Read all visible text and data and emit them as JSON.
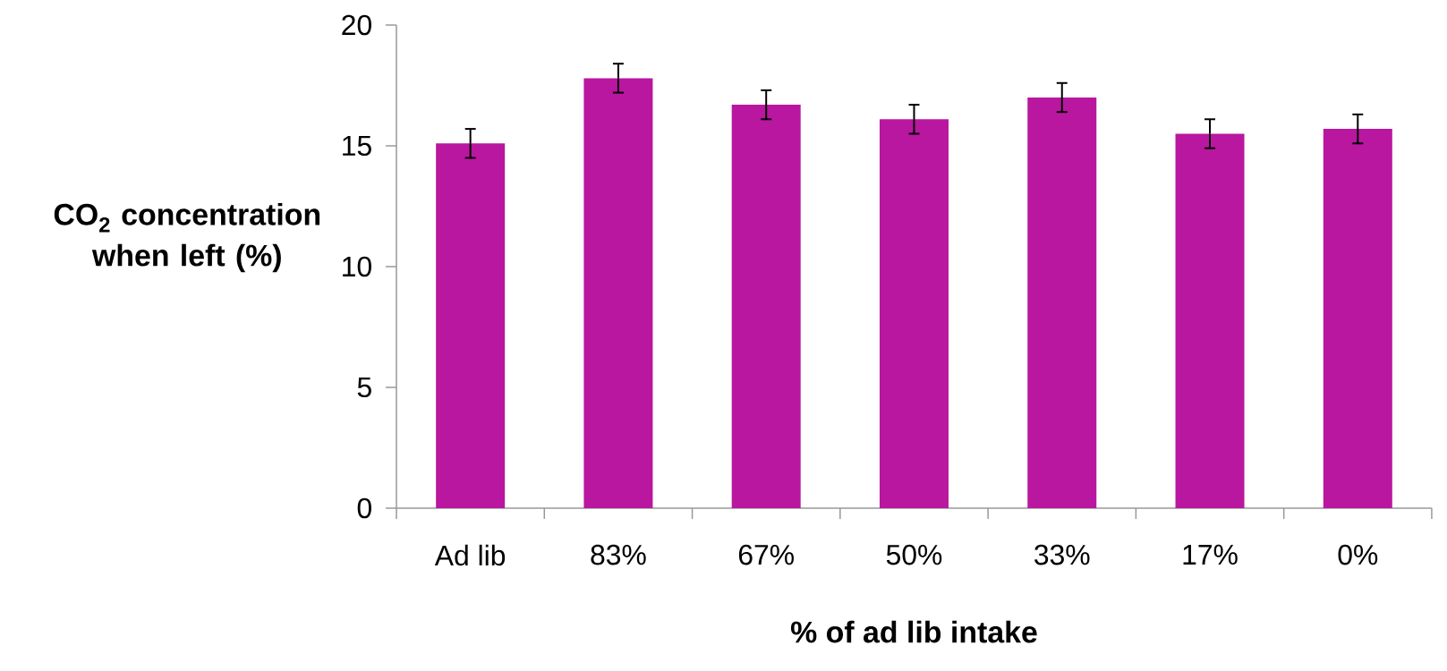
{
  "chart_data": {
    "type": "bar",
    "xlabel": "% of ad lib intake",
    "ylabel": "CO$_{2}$ concentration when left (%)",
    "categories": [
      "Ad lib",
      "83%",
      "67%",
      "50%",
      "33%",
      "17%",
      "0%"
    ],
    "values": [
      15.1,
      17.8,
      16.7,
      16.1,
      17.0,
      15.5,
      15.7
    ],
    "errors": [
      0.6,
      0.6,
      0.6,
      0.6,
      0.6,
      0.6,
      0.6
    ],
    "color": "#b9179f",
    "ylim": [
      0,
      20
    ],
    "yticks": [
      0,
      5,
      10,
      15,
      20
    ],
    "grid": false
  }
}
